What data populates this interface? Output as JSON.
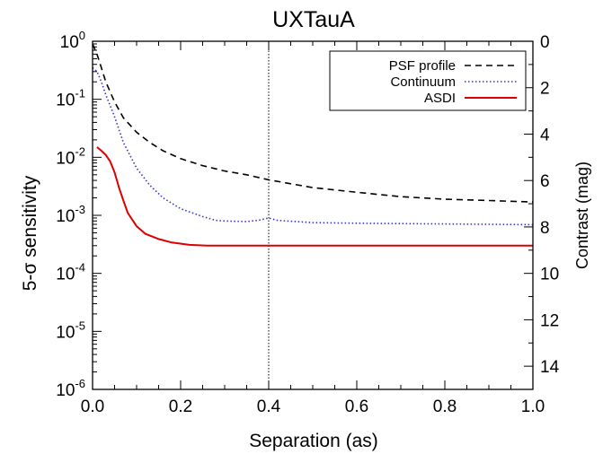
{
  "chart_data": {
    "type": "line",
    "title": "UXTauA",
    "xlabel": "Separation (as)",
    "ylabel": "5-σ sensitivity",
    "y2label": "Contrast (mag)",
    "xlim": [
      0.0,
      1.0
    ],
    "ylim": [
      1e-06,
      1.0
    ],
    "y2lim": [
      0,
      15
    ],
    "yscale": "log",
    "x_ticks": [
      "0.0",
      "0.2",
      "0.4",
      "0.6",
      "0.8",
      "1.0"
    ],
    "y_ticks": [
      {
        "base": "10",
        "exp": "0",
        "value": 1
      },
      {
        "base": "10",
        "exp": "-1",
        "value": 0.1
      },
      {
        "base": "10",
        "exp": "-2",
        "value": 0.01
      },
      {
        "base": "10",
        "exp": "-3",
        "value": 0.001
      },
      {
        "base": "10",
        "exp": "-4",
        "value": 0.0001
      },
      {
        "base": "10",
        "exp": "-5",
        "value": 1e-05
      },
      {
        "base": "10",
        "exp": "-6",
        "value": 1e-06
      }
    ],
    "y2_ticks": [
      "0",
      "2",
      "4",
      "6",
      "8",
      "10",
      "12",
      "14"
    ],
    "vline_x": 0.4,
    "legend_position": "top-right",
    "series": [
      {
        "name": "PSF profile",
        "color": "#000000",
        "style": "dashed",
        "x": [
          0.0,
          0.01,
          0.02,
          0.03,
          0.05,
          0.07,
          0.1,
          0.13,
          0.16,
          0.2,
          0.25,
          0.3,
          0.35,
          0.4,
          0.45,
          0.5,
          0.6,
          0.7,
          0.8,
          0.9,
          1.0
        ],
        "y": [
          0.9,
          0.6,
          0.35,
          0.2,
          0.09,
          0.048,
          0.027,
          0.018,
          0.013,
          0.0095,
          0.0072,
          0.0058,
          0.005,
          0.0041,
          0.0035,
          0.003,
          0.0025,
          0.0021,
          0.0019,
          0.0018,
          0.0017
        ]
      },
      {
        "name": "Continuum",
        "color": "#3333cc",
        "style": "dotted",
        "x": [
          0.0,
          0.01,
          0.02,
          0.03,
          0.05,
          0.07,
          0.1,
          0.13,
          0.16,
          0.2,
          0.25,
          0.28,
          0.3,
          0.35,
          0.38,
          0.4,
          0.42,
          0.5,
          0.6,
          0.7,
          0.8,
          0.9,
          1.0
        ],
        "y": [
          0.35,
          0.3,
          0.2,
          0.12,
          0.05,
          0.018,
          0.0065,
          0.0033,
          0.002,
          0.0013,
          0.00095,
          0.00082,
          0.0008,
          0.00078,
          0.00083,
          0.0009,
          0.00082,
          0.00075,
          0.00073,
          0.00072,
          0.00071,
          0.0007,
          0.00069
        ]
      },
      {
        "name": "ASDI",
        "color": "#dd0000",
        "style": "solid",
        "x": [
          0.01,
          0.02,
          0.03,
          0.04,
          0.05,
          0.06,
          0.07,
          0.08,
          0.1,
          0.12,
          0.15,
          0.18,
          0.22,
          0.26,
          0.3,
          0.4,
          0.5,
          0.6,
          0.7,
          0.8,
          0.9,
          1.0
        ],
        "y": [
          0.015,
          0.013,
          0.011,
          0.0085,
          0.0055,
          0.003,
          0.0018,
          0.0011,
          0.00065,
          0.00048,
          0.00039,
          0.00034,
          0.00031,
          0.0003,
          0.0003,
          0.0003,
          0.0003,
          0.0003,
          0.0003,
          0.0003,
          0.0003,
          0.0003
        ]
      }
    ]
  }
}
